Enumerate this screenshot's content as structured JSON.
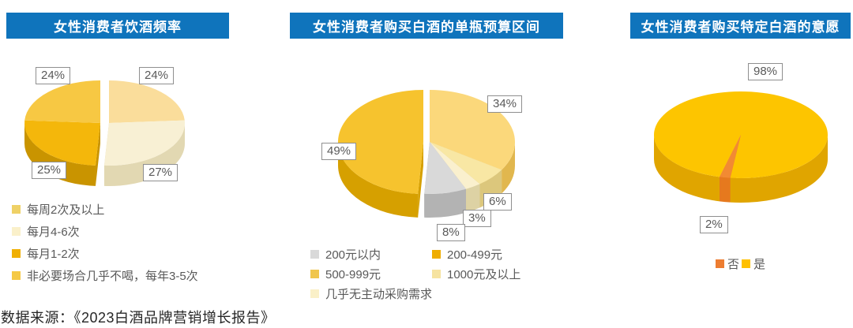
{
  "footer": {
    "source": "数据来源：《2023白酒品牌营销增长报告》"
  },
  "theme": {
    "header_bg": "#0F74BC",
    "header_text": "#FFFFFF",
    "callout_border": "#8F8F8F",
    "callout_text": "#595959",
    "legend_text": "#595959"
  },
  "chart_data": [
    {
      "type": "pie",
      "title": "女性消费者饮酒频率",
      "legend_position": "bottom-left",
      "slices": [
        {
          "label": "每周2次及以上",
          "value": 24,
          "pct_label": "24%",
          "color": "#FADD9B",
          "side": "#E3C27A"
        },
        {
          "label": "每月4-6次",
          "value": 27,
          "pct_label": "27%",
          "color": "#F8F0D4",
          "side": "#E2D8B2"
        },
        {
          "label": "每月1-2次",
          "value": 25,
          "pct_label": "25%",
          "color": "#F4B70B",
          "side": "#C99400"
        },
        {
          "label": "非必要场合几乎不喝，每年3-5次",
          "value": 24,
          "pct_label": "24%",
          "color": "#F7C843",
          "side": "#D7A51F"
        }
      ],
      "legend": [
        {
          "label": "每周2次及以上",
          "color": "#EFD166"
        },
        {
          "label": "每月4-6次",
          "color": "#FAF0CA"
        },
        {
          "label": "每月1-2次",
          "color": "#F0B003"
        },
        {
          "label": "非必要场合几乎不喝，每年3-5次",
          "color": "#F5C945"
        }
      ]
    },
    {
      "type": "pie",
      "title": "女性消费者购买白酒的单瓶预算区间",
      "legend_position": "bottom",
      "slices": [
        {
          "label": "500-999元",
          "value": 34,
          "pct_label": "34%",
          "color": "#FBD87B",
          "side": "#E1B74E"
        },
        {
          "label": "1000元及以上",
          "value": 6,
          "pct_label": "6%",
          "color": "#F8E7A4",
          "side": "#DCC77C"
        },
        {
          "label": "几乎无主动采购需求",
          "value": 3,
          "pct_label": "3%",
          "color": "#FAF0CE",
          "side": "#DDD2A4"
        },
        {
          "label": "200元以内",
          "value": 8,
          "pct_label": "8%",
          "color": "#D9D9D9",
          "side": "#B3B3B3"
        },
        {
          "label": "200-499元",
          "value": 49,
          "pct_label": "49%",
          "color": "#F6C32E",
          "side": "#D6A000"
        }
      ],
      "legend": [
        {
          "label": "200元以内",
          "color": "#D9D9D9"
        },
        {
          "label": "200-499元",
          "color": "#EFAD00"
        },
        {
          "label": "500-999元",
          "color": "#F0C64D"
        },
        {
          "label": "1000元及以上",
          "color": "#F6E3A0"
        },
        {
          "label": "几乎无主动采购需求",
          "color": "#FAF0C8"
        }
      ]
    },
    {
      "type": "pie",
      "title": "女性消费者购买特定白酒的意愿",
      "legend_position": "bottom",
      "slices": [
        {
          "label": "是",
          "value": 98,
          "pct_label": "98%",
          "color": "#FDC500",
          "side": "#E0A500"
        },
        {
          "label": "否",
          "value": 2,
          "pct_label": "2%",
          "color": "#F28A33",
          "side": "#E6791E"
        }
      ],
      "legend": [
        {
          "label": "否",
          "color": "#ED7D31"
        },
        {
          "label": "是",
          "color": "#FFC000"
        }
      ]
    }
  ]
}
